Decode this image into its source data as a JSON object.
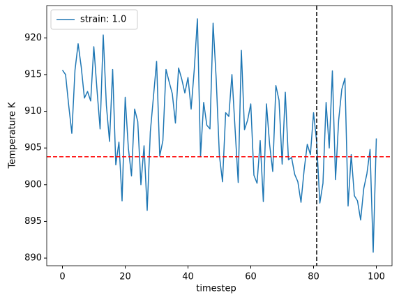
{
  "chart_data": {
    "type": "line",
    "x_label": "timestep",
    "y_label": "Temperature K",
    "x": [
      0,
      1,
      2,
      3,
      4,
      5,
      6,
      7,
      8,
      9,
      10,
      11,
      12,
      13,
      14,
      15,
      16,
      17,
      18,
      19,
      20,
      21,
      22,
      23,
      24,
      25,
      26,
      27,
      28,
      29,
      30,
      31,
      32,
      33,
      34,
      35,
      36,
      37,
      38,
      39,
      40,
      41,
      42,
      43,
      44,
      45,
      46,
      47,
      48,
      49,
      50,
      51,
      52,
      53,
      54,
      55,
      56,
      57,
      58,
      59,
      60,
      61,
      62,
      63,
      64,
      65,
      66,
      67,
      68,
      69,
      70,
      71,
      72,
      73,
      74,
      75,
      76,
      77,
      78,
      79,
      80,
      81,
      82,
      83,
      84,
      85,
      86,
      87,
      88,
      89,
      90,
      91,
      92,
      93,
      94,
      95,
      96,
      97,
      98,
      99,
      100
    ],
    "series": [
      {
        "name": "strain: 1.0",
        "color": "#1f77b4",
        "values": [
          915.6,
          915.0,
          910.8,
          907.0,
          915.6,
          919.2,
          916.0,
          911.8,
          912.7,
          911.4,
          918.8,
          913.0,
          907.6,
          920.4,
          910.8,
          905.9,
          915.7,
          902.7,
          905.8,
          897.8,
          911.9,
          905.0,
          901.2,
          910.3,
          908.6,
          900.0,
          905.3,
          896.5,
          907.2,
          912.0,
          916.8,
          903.9,
          906.0,
          915.7,
          914.0,
          912.4,
          908.4,
          915.9,
          914.4,
          912.5,
          914.6,
          910.3,
          915.7,
          922.6,
          903.9,
          911.2,
          908.1,
          907.6,
          922.0,
          914.3,
          904.0,
          900.4,
          909.8,
          909.3,
          915.0,
          907.6,
          900.3,
          918.3,
          907.5,
          908.8,
          911.0,
          901.3,
          900.2,
          906.0,
          897.7,
          911.0,
          905.5,
          901.8,
          913.5,
          911.5,
          902.8,
          912.6,
          903.4,
          903.7,
          901.4,
          900.4,
          897.6,
          902.0,
          905.5,
          904.1,
          909.8,
          905.8,
          897.5,
          900.2,
          911.2,
          905.0,
          915.5,
          900.7,
          908.8,
          913.0,
          914.5,
          897.1,
          904.1,
          898.5,
          897.8,
          895.2,
          899.5,
          901.5,
          904.8,
          890.8,
          906.3
        ]
      }
    ],
    "hline": {
      "value": 903.8,
      "color": "#ff0000"
    },
    "vline": {
      "value": 81,
      "color": "#000000"
    },
    "xlim": [
      -5,
      105
    ],
    "xticks": [
      0,
      20,
      40,
      60,
      80,
      100
    ],
    "ylim": [
      888.96,
      924.4
    ],
    "yticks": [
      890,
      895,
      900,
      905,
      910,
      915,
      920
    ],
    "legend": "upper left",
    "grid": false
  }
}
